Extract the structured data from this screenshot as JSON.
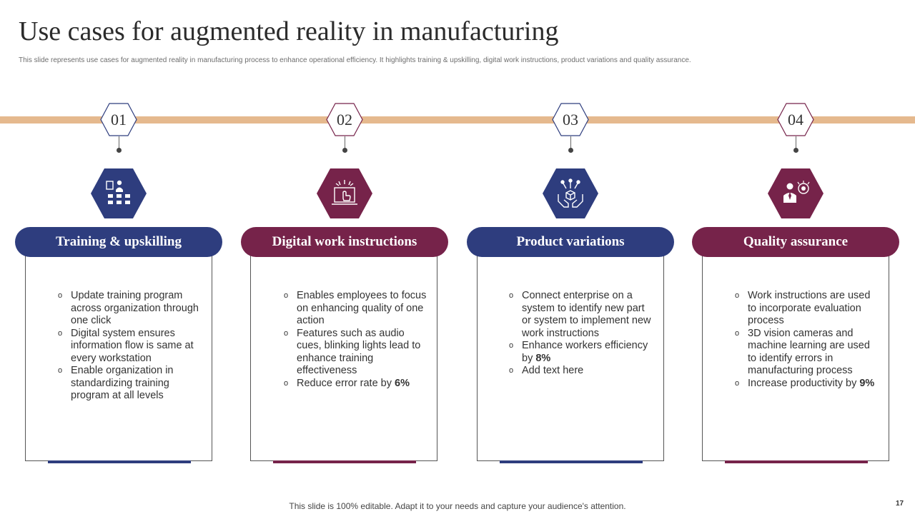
{
  "slide": {
    "title": "Use cases for augmented reality in manufacturing",
    "subtitle": "This slide represents use cases for augmented reality in manufacturing process to enhance operational efficiency. It highlights training & upskilling,  digital  work instructions, product variations and quality assurance.",
    "footer": "This slide is 100% editable. Adapt it to your needs and capture your audience's attention.",
    "page_number": "17"
  },
  "colors": {
    "navy": "#2e3d7e",
    "maroon": "#76234a",
    "timeline": "#e5b98e"
  },
  "bullet_glyph": "o",
  "steps": [
    {
      "number": "01",
      "icon": "training-presentation-icon",
      "heading": "Training & upskilling",
      "points": [
        {
          "text": "Update training program across organization through one click",
          "bold": ""
        },
        {
          "text": "Digital system ensures information flow is same at every workstation",
          "bold": ""
        },
        {
          "text": "Enable organization in standardizing training program at all levels",
          "bold": ""
        }
      ]
    },
    {
      "number": "02",
      "icon": "laptop-touch-icon",
      "heading": "Digital work instructions",
      "points": [
        {
          "text": "Enables employees to focus on enhancing quality of one action",
          "bold": ""
        },
        {
          "text": "Features such as audio cues, blinking lights lead to enhance training effectiveness",
          "bold": ""
        },
        {
          "text": "Reduce error rate by ",
          "bold": "6%"
        }
      ]
    },
    {
      "number": "03",
      "icon": "hands-box-icon",
      "heading": "Product variations",
      "points": [
        {
          "text": "Connect enterprise on a system to identify new part or system to implement new work instructions",
          "bold": ""
        },
        {
          "text": "Enhance workers efficiency by ",
          "bold": "8%"
        },
        {
          "text": "Add text here",
          "bold": ""
        }
      ]
    },
    {
      "number": "04",
      "icon": "quality-badge-person-icon",
      "heading": "Quality assurance",
      "points": [
        {
          "text": "Work instructions are used to incorporate evaluation process",
          "bold": ""
        },
        {
          "text": "3D vision cameras and machine learning are used to identify errors in manufacturing process",
          "bold": ""
        },
        {
          "text": "Increase productivity by ",
          "bold": "9%"
        }
      ]
    }
  ]
}
